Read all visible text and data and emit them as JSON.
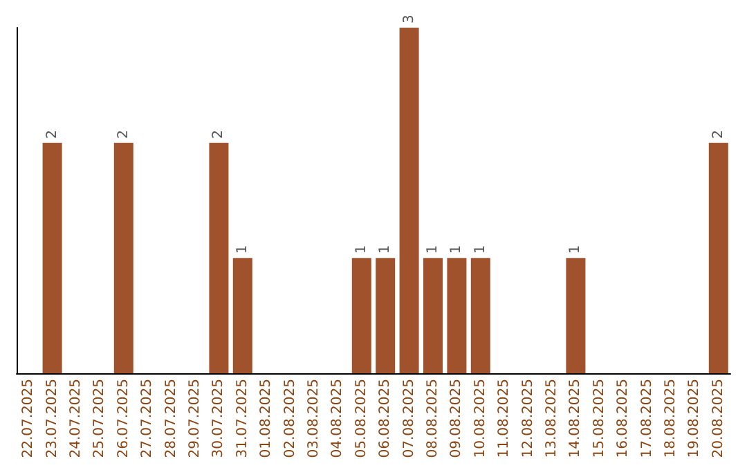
{
  "chart_data": {
    "type": "bar",
    "categories": [
      "22.07.2025",
      "23.07.2025",
      "24.07.2025",
      "25.07.2025",
      "26.07.2025",
      "27.07.2025",
      "28.07.2025",
      "29.07.2025",
      "30.07.2025",
      "31.07.2025",
      "01.08.2025",
      "02.08.2025",
      "03.08.2025",
      "04.08.2025",
      "05.08.2025",
      "06.08.2025",
      "07.08.2025",
      "08.08.2025",
      "09.08.2025",
      "10.08.2025",
      "11.08.2025",
      "12.08.2025",
      "13.08.2025",
      "14.08.2025",
      "15.08.2025",
      "16.08.2025",
      "17.08.2025",
      "18.08.2025",
      "19.08.2025",
      "20.08.2025"
    ],
    "values": [
      0,
      2,
      0,
      0,
      2,
      0,
      0,
      0,
      2,
      1,
      0,
      0,
      0,
      0,
      1,
      1,
      3,
      1,
      1,
      1,
      0,
      0,
      0,
      1,
      0,
      0,
      0,
      0,
      0,
      2
    ],
    "value_labels": [
      null,
      "2",
      null,
      null,
      "2",
      null,
      null,
      null,
      "2",
      "1",
      null,
      null,
      null,
      null,
      "1",
      "1",
      "3",
      "1",
      "1",
      "1",
      null,
      null,
      null,
      "1",
      null,
      null,
      null,
      null,
      null,
      "2"
    ],
    "color": "#a0522d"
  }
}
